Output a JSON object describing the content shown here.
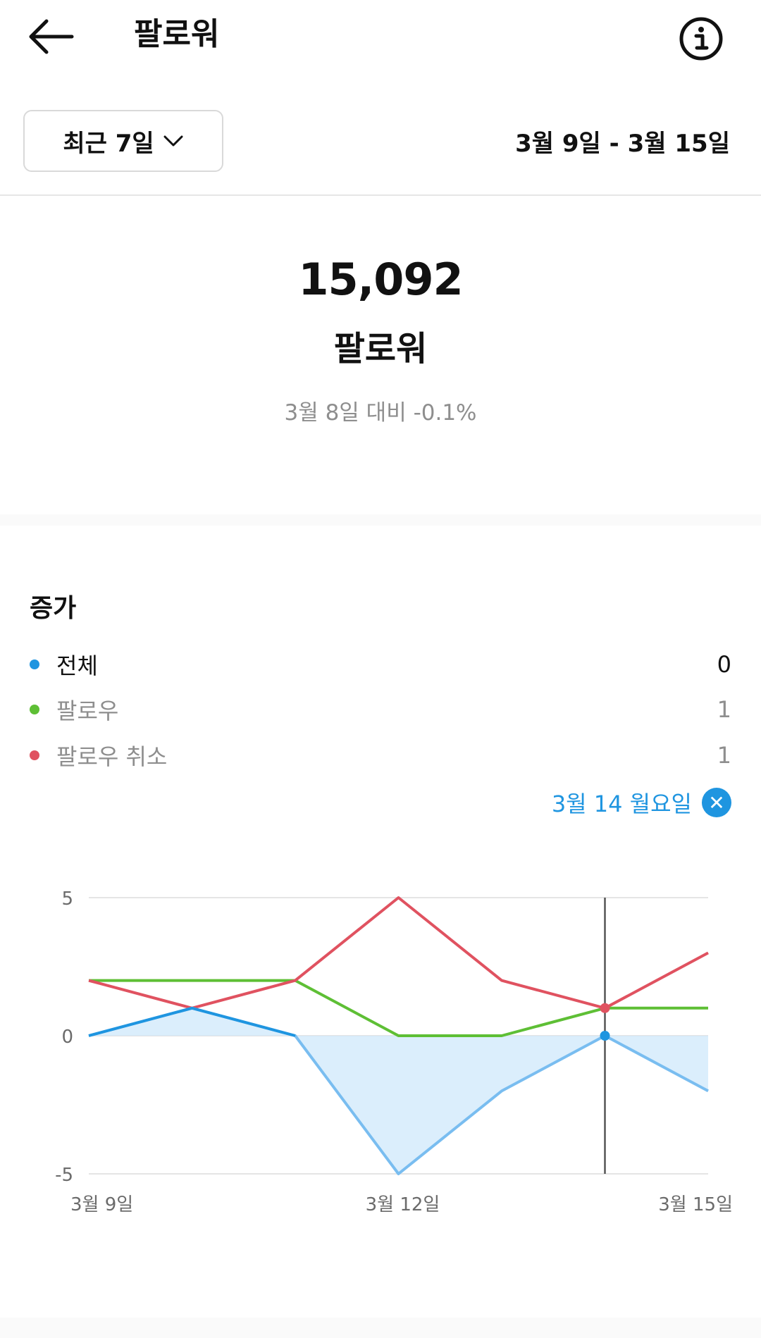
{
  "header": {
    "title": "팔로워",
    "back_icon": "arrow-left-icon",
    "info_icon": "info-icon"
  },
  "filter": {
    "range_label": "최근 7일",
    "dropdown_icon": "chevron-down-icon",
    "date_range": "3월 9일 - 3월 15일"
  },
  "summary": {
    "total": "15,092",
    "label": "팔로워",
    "comparison": "3월 8일 대비 -0.1%"
  },
  "growth": {
    "title": "증가",
    "legend": [
      {
        "label": "전체",
        "value": "0",
        "color": "#1f95e0",
        "label_color": "#111111"
      },
      {
        "label": "팔로우",
        "value": "1",
        "color": "#5ebf35",
        "label_color": "#8e8e8e"
      },
      {
        "label": "팔로우 취소",
        "value": "1",
        "color": "#e05260",
        "label_color": "#8e8e8e"
      }
    ],
    "selected_date": "3월 14 월요일",
    "close_icon": "close-icon"
  },
  "chart_data": {
    "type": "line",
    "x": [
      "3월 9일",
      "3월 10일",
      "3월 11일",
      "3월 12일",
      "3월 13일",
      "3월 14일",
      "3월 15일"
    ],
    "x_tick_labels": [
      "3월 9일",
      "3월 12일",
      "3월 15일"
    ],
    "y_tick_labels": [
      "5",
      "0",
      "-5"
    ],
    "ylim": [
      -5,
      5
    ],
    "series": [
      {
        "name": "전체",
        "color": "#1f95e0",
        "values": [
          0,
          1,
          0,
          -5,
          -2,
          0,
          -2
        ]
      },
      {
        "name": "팔로우",
        "color": "#5ebf35",
        "values": [
          2,
          2,
          2,
          0,
          0,
          1,
          1
        ]
      },
      {
        "name": "팔로우 취소",
        "color": "#e05260",
        "values": [
          2,
          1,
          2,
          5,
          2,
          1,
          3
        ]
      }
    ],
    "selected_index": 5,
    "grid": true
  }
}
